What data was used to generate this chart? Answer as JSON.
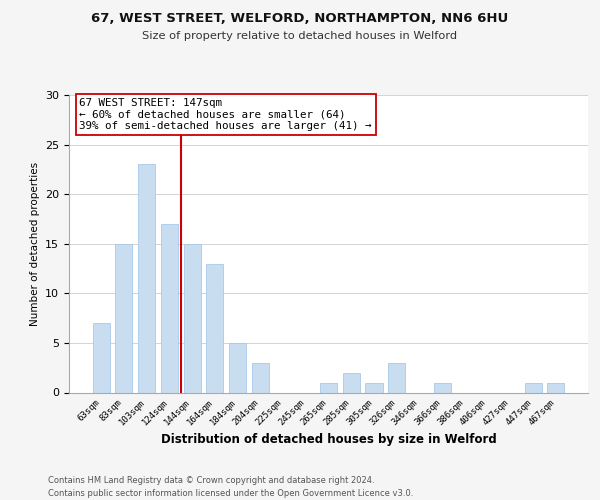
{
  "title1": "67, WEST STREET, WELFORD, NORTHAMPTON, NN6 6HU",
  "title2": "Size of property relative to detached houses in Welford",
  "xlabel": "Distribution of detached houses by size in Welford",
  "ylabel": "Number of detached properties",
  "bins": [
    "63sqm",
    "83sqm",
    "103sqm",
    "124sqm",
    "144sqm",
    "164sqm",
    "184sqm",
    "204sqm",
    "225sqm",
    "245sqm",
    "265sqm",
    "285sqm",
    "305sqm",
    "326sqm",
    "346sqm",
    "366sqm",
    "386sqm",
    "406sqm",
    "427sqm",
    "447sqm",
    "467sqm"
  ],
  "counts": [
    7,
    15,
    23,
    17,
    15,
    13,
    5,
    3,
    0,
    0,
    1,
    2,
    1,
    3,
    0,
    1,
    0,
    0,
    0,
    1,
    1
  ],
  "bar_color": "#c8ddf0",
  "bar_edge_color": "#a8c8e8",
  "highlight_line_color": "#cc0000",
  "annotation_line1": "67 WEST STREET: 147sqm",
  "annotation_line2": "← 60% of detached houses are smaller (64)",
  "annotation_line3": "39% of semi-detached houses are larger (41) →",
  "annotation_box_color": "white",
  "annotation_box_edge_color": "#cc0000",
  "ylim": [
    0,
    30
  ],
  "yticks": [
    0,
    5,
    10,
    15,
    20,
    25,
    30
  ],
  "footer1": "Contains HM Land Registry data © Crown copyright and database right 2024.",
  "footer2": "Contains public sector information licensed under the Open Government Licence v3.0.",
  "background_color": "#f5f5f5",
  "plot_background": "white",
  "grid_color": "#cccccc"
}
